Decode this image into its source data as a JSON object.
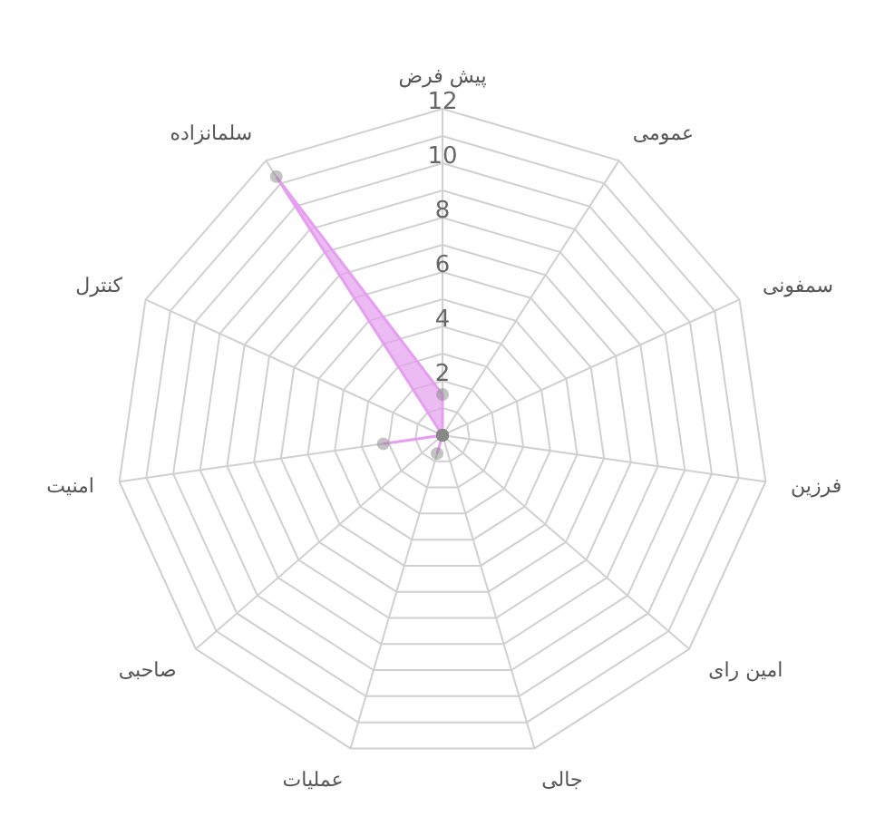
{
  "chart_data": {
    "type": "radar",
    "categories": [
      "پیش فرض",
      "عمومی",
      "سمفونی",
      "فرزین",
      "امین رای",
      "جالی",
      "عملیات",
      "صاحبی",
      "امنیت",
      "کنترل",
      "سلمانزاده"
    ],
    "series": [
      {
        "color": "#e59ef0",
        "values": [
          1.5,
          0,
          0,
          0,
          0,
          0,
          0.7,
          0,
          2.2,
          0,
          11.3
        ]
      }
    ],
    "ylim": [
      0,
      12
    ],
    "yticks": [
      2,
      4,
      6,
      8,
      10,
      12
    ],
    "grid": true,
    "marker": "circle"
  }
}
